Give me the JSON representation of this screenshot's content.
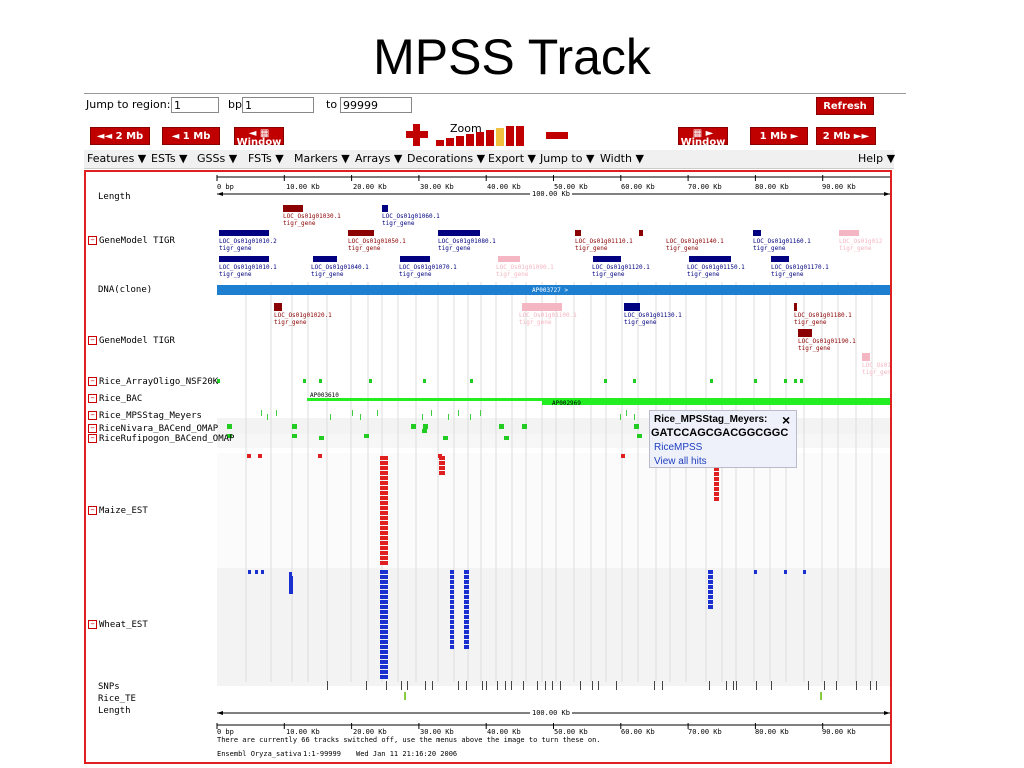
{
  "title": "MPSS Track",
  "region": {
    "jump_label": "Jump to region:",
    "jump_value": "1",
    "bp_label": "bp",
    "bp_value": "1",
    "to_label": "to",
    "to_value": "99999"
  },
  "buttons": {
    "refresh": "Refresh",
    "left2mb": "◄◄ 2 Mb",
    "left1mb": "◄ 1 Mb",
    "window": "Window",
    "right1mb": "1 Mb ►",
    "right2mb": "2 Mb ►►",
    "zoom": "Zoom"
  },
  "menu": [
    "Features ▼",
    "ESTs ▼",
    "GSSs ▼",
    "FSTs ▼",
    "Markers ▼",
    "Arrays ▼",
    "Decorations ▼",
    "Export ▼",
    "Jump to ▼",
    "Width ▼"
  ],
  "help": "Help ▼",
  "scale_ticks": [
    "0 bp",
    "10.00 Kb",
    "20.00 Kb",
    "30.00 Kb",
    "40.00 Kb",
    "50.00 Kb",
    "60.00 Kb",
    "70.00 Kb",
    "80.00 Kb",
    "90.00 Kb"
  ],
  "length_center": "100.00 Kb",
  "tracks": {
    "length_top": "Length",
    "genemodel1": "GeneModel TIGR",
    "dna": "DNA(clone)",
    "genemodel2": "GeneModel TIGR",
    "arrayoligo": "Rice_ArrayOligo_NSF20K",
    "bac": "Rice_BAC",
    "mpss": "Rice_MPSStag_Meyers",
    "nivara": "RiceNivara_BACend_OMAP",
    "rufipogon": "RiceRufipogon_BACend_OMAP",
    "maize": "Maize_EST",
    "wheat": "Wheat_EST",
    "snps": "SNPs",
    "te": "Rice_TE",
    "length_bottom": "Length"
  },
  "genes_top": [
    {
      "label": "LOC_Os01g01030.1",
      "sub": "tigr_gene"
    },
    {
      "label": "LOC_Os01g01060.1",
      "sub": "tigr_gene"
    },
    {
      "label": "LOC_Os01g01010.2",
      "sub": "tigr_gene"
    },
    {
      "label": "LOC_Os01g01050.1",
      "sub": "tigr_gene"
    },
    {
      "label": "LOC_Os01g01080.1",
      "sub": "tigr_gene"
    },
    {
      "label": "LOC_Os01g01110.1",
      "sub": "tigr_gene"
    },
    {
      "label": "LOC_Os01g01140.1",
      "sub": "tigr_gene"
    },
    {
      "label": "LOC_Os01g01160.1",
      "sub": "tigr_gene"
    },
    {
      "label": "LOC_Os01g012",
      "sub": "tigr_gene"
    },
    {
      "label": "LOC_Os01g01010.1",
      "sub": "tigr_gene"
    },
    {
      "label": "LOC_Os01g01040.1",
      "sub": "tigr_gene"
    },
    {
      "label": "LOC_Os01g01070.1",
      "sub": "tigr_gene"
    },
    {
      "label": "LOC_Os01g01090.1",
      "sub": "tigr_gene"
    },
    {
      "label": "LOC_Os01g01120.1",
      "sub": "tigr_gene"
    },
    {
      "label": "LOC_Os01g01150.1",
      "sub": "tigr_gene"
    },
    {
      "label": "LOC_Os01g01170.1",
      "sub": "tigr_gene"
    }
  ],
  "clone": "AP003727 >",
  "genes_bottom": [
    {
      "label": "LOC_Os01g01020.1",
      "sub": "tigr_gene"
    },
    {
      "label": "LOC_Os01g01100.1",
      "sub": "tigr_gene"
    },
    {
      "label": "LOC_Os01g01130.1",
      "sub": "tigr_gene"
    },
    {
      "label": "LOC_Os01g01180.1",
      "sub": "tigr_gene"
    },
    {
      "label": "LOC_Os01g01190.1",
      "sub": "tigr_gene"
    },
    {
      "label": "LOC_Os01",
      "sub": "tigr_gen"
    }
  ],
  "bac_labels": [
    "AP003610",
    "AP002969"
  ],
  "popup": {
    "title": "Rice_MPSStag_Meyers:",
    "sequence": "GATCCAGCGACGGCGGC",
    "close": "×",
    "link1": "RiceMPSS",
    "link2": "View all hits"
  },
  "footer": {
    "tracks_off": "There are currently 66 tracks switched off, use the menus above the image to turn these on.",
    "species": "Ensembl Oryza_sativa",
    "range": "1:1-99999",
    "date": "Wed Jan 11 21:16:20 2006"
  },
  "colors": {
    "button_red": "#c00000",
    "gene_red": "#8b0000",
    "gene_blue": "#000080",
    "gene_pink": "#f4b6c2",
    "clone_blue": "#1e7fd0",
    "bac_green": "#22ee22",
    "maize_red": "#e02020",
    "wheat_blue": "#1a2fd0",
    "panel_border": "#e02020"
  }
}
